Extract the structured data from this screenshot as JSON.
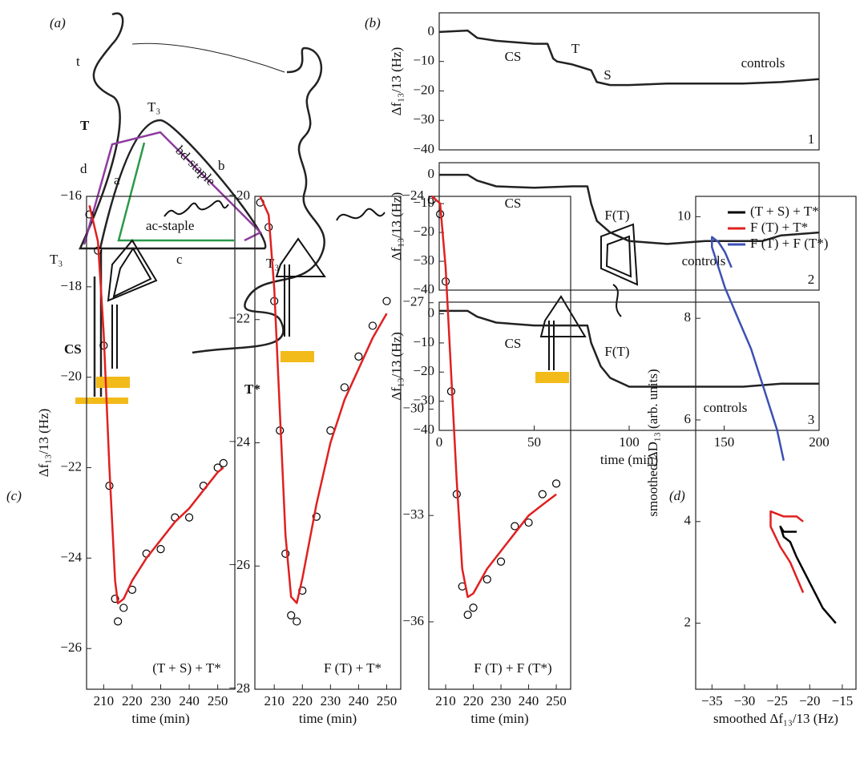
{
  "panels": [
    "(a)",
    "(b)",
    "(c)",
    "(d)"
  ],
  "diagram": {
    "labels": [
      "t",
      "T",
      "T₃",
      "d",
      "a",
      "bd-staple",
      "b",
      "ac-staple",
      "T₃",
      "T₃",
      "c",
      "CS",
      "T*"
    ]
  },
  "chart_data": [
    {
      "type": "line",
      "ylabel": "Δf₁₃/13 (Hz)",
      "xlim": [
        0,
        200
      ],
      "ylim": [
        -40,
        6.5
      ],
      "yticks": [
        0,
        {
          "value": -10,
          "label": "−10"
        },
        {
          "value": -20,
          "label": "−20"
        },
        {
          "value": -30,
          "label": "−30"
        },
        {
          "value": -40,
          "label": "−40"
        }
      ],
      "annotations": [
        "CS",
        "T",
        "S",
        "controls",
        "1"
      ],
      "series": [
        {
          "color": "#222222",
          "x": [
            0,
            15,
            20,
            30,
            40,
            50,
            57,
            60,
            62,
            70,
            75,
            80,
            83,
            90,
            100,
            120,
            140,
            160,
            180,
            200
          ],
          "values": [
            0,
            0.5,
            -2,
            -3,
            -3.5,
            -4,
            -4,
            -9,
            -10,
            -11,
            -12,
            -13,
            -17,
            -18,
            -18,
            -17.5,
            -17.5,
            -17.5,
            -17,
            -16
          ]
        }
      ]
    },
    {
      "type": "line",
      "ylabel": "Δf₁₃/13 (Hz)",
      "xlim": [
        0,
        200
      ],
      "ylim": [
        -40,
        4.2
      ],
      "yticks": [
        0,
        {
          "value": -10,
          "label": "−10"
        },
        {
          "value": -20,
          "label": "−20"
        },
        {
          "value": -30,
          "label": "−30"
        },
        {
          "value": -40,
          "label": "−40"
        }
      ],
      "annotations": [
        "CS",
        "F(T)",
        "controls",
        "2"
      ],
      "series": [
        {
          "color": "#222222",
          "x": [
            0,
            15,
            20,
            30,
            50,
            70,
            78,
            80,
            83,
            90,
            100,
            120,
            140,
            160,
            170,
            180,
            200
          ],
          "values": [
            0,
            0,
            -2,
            -4,
            -4.5,
            -4,
            -4,
            -10,
            -16,
            -20,
            -23,
            -24,
            -23,
            -23,
            -23,
            -21,
            -20
          ]
        }
      ]
    },
    {
      "type": "line",
      "ylabel": "Δf₁₃/13 (Hz)",
      "xlabel": "time (min)",
      "xlim": [
        0,
        200
      ],
      "ylim": [
        -40,
        4
      ],
      "xticks": [
        0,
        50,
        100,
        150,
        200
      ],
      "yticks": [
        0,
        {
          "value": -10,
          "label": "−10"
        },
        {
          "value": -20,
          "label": "−20"
        },
        {
          "value": -30,
          "label": "−30"
        },
        {
          "value": -40,
          "label": "−40"
        }
      ],
      "annotations": [
        "CS",
        "F(T)",
        "controls",
        "3"
      ],
      "series": [
        {
          "color": "#222222",
          "x": [
            0,
            15,
            20,
            30,
            50,
            70,
            78,
            80,
            85,
            90,
            100,
            120,
            140,
            160,
            180,
            200
          ],
          "values": [
            1,
            1,
            -1,
            -3,
            -4,
            -4,
            -4,
            -10,
            -18,
            -22,
            -25,
            -25,
            -25,
            -25,
            -24,
            -24
          ]
        }
      ]
    },
    {
      "type": "line",
      "ylabel": "Δf₁₃/13 (Hz)",
      "xlabel": "time (min)",
      "xlim": [
        204,
        256
      ],
      "ylim": [
        -26.9,
        -16
      ],
      "xticks": [
        210,
        220,
        230,
        240,
        250
      ],
      "yticks": [
        {
          "value": -26,
          "label": "−26"
        },
        {
          "value": -24,
          "label": "−24"
        },
        {
          "value": -22,
          "label": "−22"
        },
        {
          "value": -20,
          "label": "−20"
        },
        {
          "value": -18,
          "label": "−18"
        },
        {
          "value": -16,
          "label": "−16"
        }
      ],
      "annotations": [
        "(T + S) + T*"
      ],
      "series": [
        {
          "style": "markers",
          "color": "#000000",
          "x": [
            205,
            208,
            210,
            212,
            214,
            215,
            217,
            220,
            225,
            230,
            235,
            240,
            245,
            250,
            252
          ],
          "values": [
            -16.4,
            -17.2,
            -19.3,
            -22.4,
            -24.9,
            -25.4,
            -25.1,
            -24.7,
            -23.9,
            -23.8,
            -23.1,
            -23.1,
            -22.4,
            -22.0,
            -21.9
          ]
        },
        {
          "color": "#e02020",
          "x": [
            205,
            208,
            210,
            212,
            214,
            215,
            217,
            220,
            225,
            230,
            235,
            240,
            245,
            250,
            252
          ],
          "values": [
            -16.2,
            -17,
            -19,
            -22,
            -24.5,
            -25,
            -24.9,
            -24.5,
            -24,
            -23.6,
            -23.2,
            -22.9,
            -22.5,
            -22.1,
            -22
          ]
        }
      ]
    },
    {
      "type": "line",
      "xlabel": "time (min)",
      "xlim": [
        203.1,
        255
      ],
      "ylim": [
        -28,
        -20
      ],
      "xticks": [
        210,
        220,
        230,
        240,
        250
      ],
      "yticks": [
        {
          "value": -28,
          "label": "−28"
        },
        {
          "value": -26,
          "label": "−26"
        },
        {
          "value": -24,
          "label": "−24"
        },
        {
          "value": -22,
          "label": "−22"
        },
        {
          "value": -20,
          "label": "−20"
        }
      ],
      "annotations": [
        "F (T) + T*"
      ],
      "series": [
        {
          "style": "markers",
          "color": "#000000",
          "x": [
            205,
            208,
            210,
            212,
            214,
            216,
            218,
            220,
            225,
            230,
            235,
            240,
            245,
            250
          ],
          "values": [
            -20.1,
            -20.5,
            -21.7,
            -23.8,
            -25.8,
            -26.8,
            -26.9,
            -26.4,
            -25.2,
            -23.8,
            -23.1,
            -22.6,
            -22.1,
            -21.7
          ]
        },
        {
          "color": "#e02020",
          "x": [
            205,
            208,
            210,
            212,
            214,
            216,
            218,
            220,
            225,
            230,
            235,
            240,
            245,
            250
          ],
          "values": [
            -20,
            -20.3,
            -21.5,
            -23.5,
            -25.5,
            -26.5,
            -26.6,
            -26.2,
            -25,
            -24,
            -23.3,
            -22.8,
            -22.3,
            -21.9
          ]
        }
      ]
    },
    {
      "type": "line",
      "xlabel": "time (min)",
      "xlim": [
        203.9,
        255.2
      ],
      "ylim": [
        -37.9,
        -24
      ],
      "xticks": [
        210,
        220,
        230,
        240,
        250
      ],
      "yticks": [
        {
          "value": -36,
          "label": "−36"
        },
        {
          "value": -33,
          "label": "−33"
        },
        {
          "value": -30,
          "label": "−30"
        },
        {
          "value": -27,
          "label": "−27"
        },
        {
          "value": -24,
          "label": "−24"
        }
      ],
      "annotations": [
        "F (T) + F (T*)"
      ],
      "series": [
        {
          "style": "markers",
          "color": "#000000",
          "x": [
            205,
            208,
            210,
            212,
            214,
            216,
            218,
            220,
            225,
            230,
            235,
            240,
            245,
            250
          ],
          "values": [
            -24.1,
            -24.5,
            -26.4,
            -29.5,
            -32.4,
            -35,
            -35.8,
            -35.6,
            -34.8,
            -34.3,
            -33.3,
            -33.2,
            -32.4,
            -32.1
          ]
        },
        {
          "color": "#e02020",
          "x": [
            205,
            208,
            210,
            212,
            214,
            216,
            218,
            220,
            225,
            230,
            235,
            240,
            245,
            250
          ],
          "values": [
            -24,
            -24.2,
            -26,
            -29,
            -32,
            -34.5,
            -35.3,
            -35.2,
            -34.5,
            -34,
            -33.5,
            -33,
            -32.7,
            -32.4
          ]
        }
      ]
    },
    {
      "type": "line",
      "ylabel": "smoothed ΔD₁₃ (arb. units)",
      "xlabel": "smoothed Δf₁₃/13 (Hz)",
      "xlim": [
        -37.5,
        -12.9
      ],
      "ylim": [
        0.7,
        10.4
      ],
      "xticks": [
        {
          "value": -35,
          "label": "−35"
        },
        {
          "value": -30,
          "label": "−30"
        },
        {
          "value": -25,
          "label": "−25"
        },
        {
          "value": -20,
          "label": "−20"
        },
        {
          "value": -15,
          "label": "−15"
        }
      ],
      "yticks": [
        2,
        4,
        6,
        8,
        10
      ],
      "legend": "upper right",
      "series": [
        {
          "name": "(T + S) + T*",
          "color": "#000000",
          "x": [
            -16,
            -18,
            -20,
            -22,
            -23,
            -24,
            -24.5,
            -24,
            -23,
            -22
          ],
          "values": [
            2,
            2.3,
            2.8,
            3.3,
            3.6,
            3.7,
            3.9,
            3.8,
            3.8,
            3.8
          ]
        },
        {
          "name": "F (T) + T*",
          "color": "#e02020",
          "x": [
            -21,
            -22,
            -23,
            -24.5,
            -26,
            -26,
            -24,
            -22,
            -21
          ],
          "values": [
            2.6,
            2.9,
            3.2,
            3.5,
            3.9,
            4.2,
            4.1,
            4.1,
            4.0
          ]
        },
        {
          "name": "F (T) + F (T*)",
          "color": "#3c50b4",
          "x": [
            -24,
            -25,
            -27,
            -29,
            -31,
            -33,
            -34,
            -35,
            -35,
            -34,
            -33,
            -32
          ],
          "values": [
            5.2,
            5.8,
            6.6,
            7.4,
            8.0,
            8.6,
            9.0,
            9.4,
            9.6,
            9.5,
            9.3,
            9.0
          ]
        }
      ]
    }
  ]
}
